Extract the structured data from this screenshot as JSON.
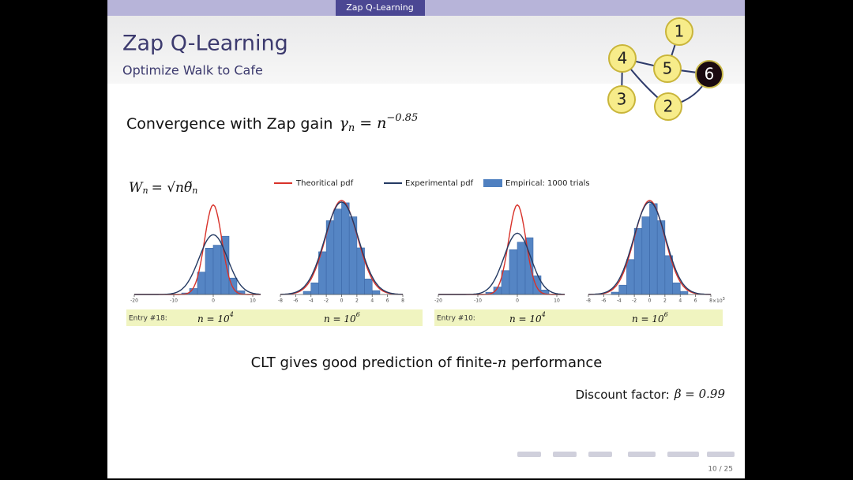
{
  "header": {
    "tab": "Zap Q-Learning",
    "title": "Zap Q-Learning",
    "subtitle": "Optimize Walk to Cafe"
  },
  "graph": {
    "nodes": [
      {
        "label": "1"
      },
      {
        "label": "4"
      },
      {
        "label": "5"
      },
      {
        "label": "6"
      },
      {
        "label": "3"
      },
      {
        "label": "2"
      }
    ]
  },
  "heading": {
    "text": "Convergence with Zap gain",
    "symbol": "γ",
    "sub": "n",
    "rhs": "= n",
    "exp": "−0.85"
  },
  "figure": {
    "lhs": "W",
    "lhs_sub": "n",
    "rhs": "= √nθ̃",
    "rhs_sub": "n",
    "legend": [
      "Theoritical pdf",
      "Experimental pdf",
      "Empirical: 1000 trials"
    ],
    "panels": [
      {
        "xlim": [
          -20,
          12
        ],
        "xticks": [
          -20,
          -10,
          0,
          10
        ],
        "ylim": [
          0,
          130
        ],
        "bins": [
          -8,
          -6,
          -4,
          -2,
          0,
          2,
          4,
          6,
          8
        ],
        "counts": [
          2,
          8,
          30,
          62,
          66,
          78,
          22,
          5
        ]
      },
      {
        "xlim": [
          -8,
          8
        ],
        "xticks": [
          -8,
          -6,
          -4,
          -2,
          0,
          2,
          4,
          6,
          8
        ],
        "ylim": [
          0,
          125
        ],
        "bins": [
          -5,
          -4,
          -3,
          -2,
          -1,
          0,
          1,
          2,
          3,
          4,
          5
        ],
        "counts": [
          4,
          15,
          55,
          95,
          110,
          118,
          100,
          60,
          20,
          5
        ]
      },
      {
        "xlim": [
          -20,
          12
        ],
        "xticks": [
          -20,
          -10,
          0,
          10
        ],
        "ylim": [
          0,
          130
        ],
        "bins": [
          -8,
          -6,
          -4,
          -2,
          0,
          2,
          4,
          6,
          8
        ],
        "counts": [
          3,
          10,
          32,
          60,
          70,
          76,
          25,
          6
        ]
      },
      {
        "xlim": [
          -8,
          8
        ],
        "xticks": [
          -8,
          -6,
          -4,
          -2,
          0,
          2,
          4,
          6,
          8
        ],
        "ylim": [
          0,
          125
        ],
        "bins": [
          -5,
          -4,
          -3,
          -2,
          -1,
          0,
          1,
          2,
          3,
          4,
          5
        ],
        "counts": [
          3,
          12,
          45,
          85,
          100,
          117,
          95,
          50,
          15,
          4
        ],
        "multiplier": "×10",
        "multiplier_exp": "3"
      }
    ],
    "captions": [
      {
        "entry": "Entry #18:",
        "left": "n = 10",
        "left_exp": "4",
        "right": "n = 10",
        "right_exp": "6"
      },
      {
        "entry": "Entry #10:",
        "left": "n = 10",
        "left_exp": "4",
        "right": "n = 10",
        "right_exp": "6"
      }
    ]
  },
  "conclusion": {
    "before": "CLT gives good prediction of finite-",
    "var": "n",
    "after": " performance"
  },
  "discount": {
    "text": "Discount factor:",
    "math": "β = 0.99"
  },
  "page": "10 / 25"
}
